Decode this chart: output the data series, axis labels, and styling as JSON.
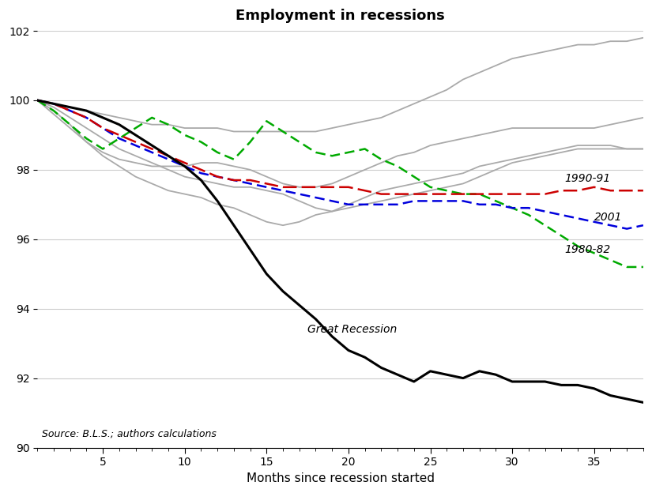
{
  "title": "Employment in recessions",
  "xlabel": "Months since recession started",
  "xlim": [
    1,
    38
  ],
  "ylim": [
    90,
    102
  ],
  "yticks": [
    90,
    92,
    94,
    96,
    98,
    100,
    102
  ],
  "xticks": [
    5,
    10,
    15,
    20,
    25,
    30,
    35
  ],
  "source_text": "Source: B.L.S.; authors calculations",
  "great_recession_label": "Great Recession",
  "recession_1990_label": "1990-91",
  "recession_2001_label": "2001",
  "recession_1980_label": "1980-82",
  "great_recession": [
    100.0,
    99.9,
    99.8,
    99.7,
    99.5,
    99.3,
    99.0,
    98.7,
    98.4,
    98.1,
    97.7,
    97.1,
    96.4,
    95.7,
    95.0,
    94.5,
    94.1,
    93.7,
    93.2,
    92.8,
    92.6,
    92.3,
    92.1,
    91.9,
    92.2,
    92.1,
    92.0,
    92.2,
    92.1,
    91.9,
    91.9,
    91.9,
    91.8,
    91.8,
    91.7,
    91.5,
    91.4,
    91.3
  ],
  "recession_1990": [
    100.0,
    99.9,
    99.7,
    99.5,
    99.2,
    99.0,
    98.8,
    98.6,
    98.4,
    98.2,
    98.0,
    97.8,
    97.7,
    97.7,
    97.6,
    97.5,
    97.5,
    97.5,
    97.5,
    97.5,
    97.4,
    97.3,
    97.3,
    97.3,
    97.3,
    97.3,
    97.3,
    97.3,
    97.3,
    97.3,
    97.3,
    97.3,
    97.4,
    97.4,
    97.5,
    97.4,
    97.4,
    97.4
  ],
  "recession_2001": [
    100.0,
    99.9,
    99.7,
    99.5,
    99.2,
    98.9,
    98.7,
    98.5,
    98.3,
    98.1,
    97.9,
    97.8,
    97.7,
    97.6,
    97.5,
    97.4,
    97.3,
    97.2,
    97.1,
    97.0,
    97.0,
    97.0,
    97.0,
    97.1,
    97.1,
    97.1,
    97.1,
    97.0,
    97.0,
    96.9,
    96.9,
    96.8,
    96.7,
    96.6,
    96.5,
    96.4,
    96.3,
    96.4
  ],
  "recession_1980": [
    100.0,
    99.7,
    99.3,
    98.9,
    98.6,
    98.9,
    99.2,
    99.5,
    99.3,
    99.0,
    98.8,
    98.5,
    98.3,
    98.8,
    99.4,
    99.1,
    98.8,
    98.5,
    98.4,
    98.5,
    98.6,
    98.3,
    98.1,
    97.8,
    97.5,
    97.4,
    97.3,
    97.3,
    97.1,
    96.9,
    96.7,
    96.4,
    96.1,
    95.8,
    95.6,
    95.4,
    95.2,
    95.2
  ],
  "gray_lines": [
    [
      100.0,
      99.8,
      99.5,
      99.2,
      98.9,
      98.6,
      98.4,
      98.2,
      98.0,
      97.8,
      97.7,
      97.6,
      97.5,
      97.5,
      97.4,
      97.3,
      97.1,
      96.9,
      96.8,
      97.0,
      97.2,
      97.4,
      97.5,
      97.6,
      97.7,
      97.8,
      97.9,
      98.1,
      98.2,
      98.3,
      98.4,
      98.5,
      98.6,
      98.7,
      98.7,
      98.7,
      98.6,
      98.6
    ],
    [
      100.0,
      99.7,
      99.3,
      98.8,
      98.4,
      98.1,
      97.8,
      97.6,
      97.4,
      97.3,
      97.2,
      97.0,
      96.9,
      96.7,
      96.5,
      96.4,
      96.5,
      96.7,
      96.8,
      96.9,
      97.0,
      97.1,
      97.2,
      97.3,
      97.4,
      97.5,
      97.6,
      97.8,
      98.0,
      98.2,
      98.3,
      98.4,
      98.5,
      98.6,
      98.6,
      98.6,
      98.6,
      98.6
    ],
    [
      100.0,
      99.6,
      99.2,
      98.8,
      98.5,
      98.3,
      98.2,
      98.1,
      98.1,
      98.1,
      98.2,
      98.2,
      98.1,
      98.0,
      97.8,
      97.6,
      97.5,
      97.5,
      97.6,
      97.8,
      98.0,
      98.2,
      98.4,
      98.5,
      98.7,
      98.8,
      98.9,
      99.0,
      99.1,
      99.2,
      99.2,
      99.2,
      99.2,
      99.2,
      99.2,
      99.3,
      99.4,
      99.5
    ],
    [
      100.0,
      99.9,
      99.8,
      99.7,
      99.6,
      99.5,
      99.4,
      99.3,
      99.3,
      99.2,
      99.2,
      99.2,
      99.1,
      99.1,
      99.1,
      99.1,
      99.1,
      99.1,
      99.2,
      99.3,
      99.4,
      99.5,
      99.7,
      99.9,
      100.1,
      100.3,
      100.6,
      100.8,
      101.0,
      101.2,
      101.3,
      101.4,
      101.5,
      101.6,
      101.6,
      101.7,
      101.7,
      101.8
    ]
  ]
}
